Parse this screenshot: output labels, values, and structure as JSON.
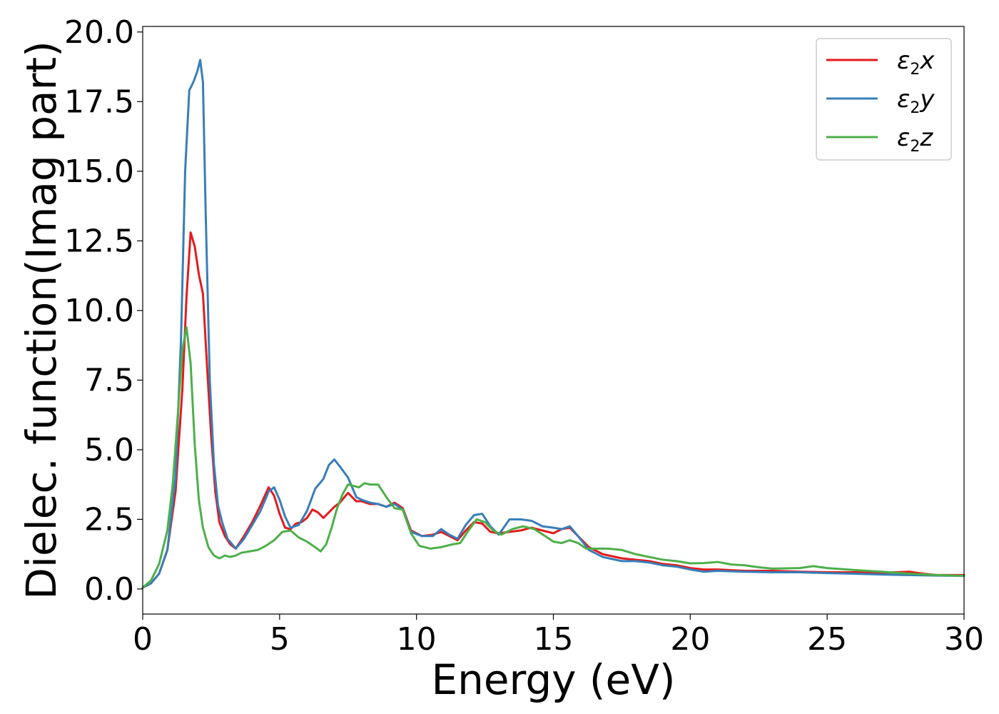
{
  "chart_data": {
    "type": "line",
    "xlabel": "Energy (eV)",
    "ylabel": "Dielec. function(Imag part)",
    "xlim": [
      0,
      30
    ],
    "ylim": [
      -0.9,
      20.2
    ],
    "xticks": [
      0,
      5,
      10,
      15,
      20,
      25,
      30
    ],
    "xtick_labels": [
      "0",
      "5",
      "10",
      "15",
      "20",
      "25",
      "30"
    ],
    "yticks": [
      0,
      2.5,
      5,
      7.5,
      10,
      12.5,
      15,
      17.5,
      20
    ],
    "ytick_labels": [
      "0.0",
      "2.5",
      "5.0",
      "7.5",
      "10.0",
      "12.5",
      "15.0",
      "17.5",
      "20.0"
    ],
    "grid": false,
    "legend_position": "top-right",
    "series": [
      {
        "name": "ε2x",
        "legend_main": "ε",
        "legend_sub": "2",
        "legend_var": "x",
        "color": "#e41a1c",
        "x": [
          0,
          0.3,
          0.6,
          0.9,
          1.2,
          1.45,
          1.6,
          1.75,
          1.9,
          2.05,
          2.2,
          2.35,
          2.5,
          2.65,
          2.8,
          3.0,
          3.2,
          3.4,
          3.7,
          4.0,
          4.3,
          4.6,
          4.8,
          5.0,
          5.2,
          5.4,
          5.6,
          5.8,
          6.0,
          6.2,
          6.4,
          6.6,
          6.8,
          7.0,
          7.2,
          7.5,
          7.8,
          8.0,
          8.3,
          8.6,
          8.9,
          9.2,
          9.5,
          9.8,
          10.2,
          10.6,
          10.9,
          11.2,
          11.5,
          11.8,
          12.1,
          12.4,
          12.7,
          13.0,
          13.4,
          13.8,
          14.2,
          14.6,
          15.0,
          15.3,
          15.6,
          15.9,
          16.3,
          16.8,
          17.5,
          18.0,
          18.5,
          19.0,
          19.5,
          20.0,
          20.5,
          21.0,
          22.0,
          23.0,
          24.0,
          25.0,
          26.0,
          27.0,
          27.5,
          28.0,
          28.5,
          29.0,
          30.0
        ],
        "y": [
          0.05,
          0.2,
          0.55,
          1.4,
          3.5,
          7.2,
          10.5,
          12.8,
          12.3,
          11.3,
          10.6,
          8.0,
          5.5,
          3.5,
          2.4,
          1.9,
          1.6,
          1.45,
          1.9,
          2.4,
          3.0,
          3.65,
          3.35,
          2.7,
          2.2,
          2.15,
          2.35,
          2.4,
          2.55,
          2.85,
          2.75,
          2.55,
          2.75,
          2.95,
          3.1,
          3.45,
          3.15,
          3.15,
          3.05,
          3.05,
          2.95,
          3.1,
          2.9,
          2.1,
          1.9,
          1.95,
          2.05,
          1.9,
          1.75,
          2.1,
          2.4,
          2.35,
          2.05,
          2.0,
          2.05,
          2.1,
          2.2,
          2.1,
          2.0,
          2.15,
          2.2,
          1.9,
          1.5,
          1.25,
          1.1,
          1.05,
          1.0,
          0.9,
          0.85,
          0.75,
          0.7,
          0.7,
          0.65,
          0.65,
          0.62,
          0.6,
          0.6,
          0.58,
          0.6,
          0.62,
          0.55,
          0.5,
          0.5
        ]
      },
      {
        "name": "ε2y",
        "legend_main": "ε",
        "legend_sub": "2",
        "legend_var": "y",
        "color": "#377eb8",
        "x": [
          0,
          0.3,
          0.6,
          0.9,
          1.2,
          1.4,
          1.55,
          1.7,
          1.85,
          2.0,
          2.1,
          2.2,
          2.3,
          2.45,
          2.6,
          2.75,
          2.9,
          3.1,
          3.4,
          3.7,
          4.0,
          4.3,
          4.6,
          4.8,
          5.0,
          5.2,
          5.4,
          5.7,
          6.0,
          6.3,
          6.6,
          6.8,
          7.0,
          7.2,
          7.5,
          7.8,
          8.0,
          8.3,
          8.6,
          8.9,
          9.2,
          9.5,
          9.8,
          10.2,
          10.6,
          10.9,
          11.2,
          11.5,
          11.8,
          12.1,
          12.4,
          12.7,
          13.0,
          13.4,
          13.8,
          14.2,
          14.6,
          15.0,
          15.3,
          15.6,
          15.9,
          16.3,
          16.8,
          17.5,
          18.0,
          18.5,
          19.0,
          19.5,
          20.0,
          20.5,
          21.0,
          22.0,
          23.0,
          24.0,
          25.0,
          26.0,
          27.0,
          28.0,
          29.0,
          30.0
        ],
        "y": [
          0.05,
          0.2,
          0.55,
          1.4,
          4.0,
          9.0,
          15.0,
          17.9,
          18.2,
          18.6,
          19.0,
          18.2,
          13.5,
          7.5,
          4.5,
          3.0,
          2.4,
          1.8,
          1.45,
          1.8,
          2.3,
          2.8,
          3.5,
          3.65,
          3.2,
          2.6,
          2.2,
          2.3,
          2.8,
          3.6,
          3.95,
          4.45,
          4.65,
          4.4,
          4.0,
          3.3,
          3.2,
          3.1,
          3.05,
          2.95,
          3.05,
          2.85,
          2.05,
          1.9,
          1.9,
          2.15,
          1.95,
          1.8,
          2.3,
          2.65,
          2.7,
          2.25,
          1.95,
          2.5,
          2.5,
          2.45,
          2.25,
          2.2,
          2.15,
          2.25,
          1.9,
          1.4,
          1.15,
          1.0,
          1.0,
          0.95,
          0.85,
          0.8,
          0.7,
          0.62,
          0.65,
          0.62,
          0.6,
          0.6,
          0.57,
          0.55,
          0.52,
          0.5,
          0.48,
          0.47
        ]
      },
      {
        "name": "ε2z",
        "legend_main": "ε",
        "legend_sub": "2",
        "legend_var": "z",
        "color": "#4daf4a",
        "x": [
          0,
          0.3,
          0.6,
          0.9,
          1.1,
          1.3,
          1.45,
          1.6,
          1.75,
          1.9,
          2.05,
          2.2,
          2.4,
          2.6,
          2.8,
          3.0,
          3.2,
          3.4,
          3.6,
          3.9,
          4.2,
          4.5,
          4.8,
          5.1,
          5.4,
          5.7,
          6.0,
          6.3,
          6.5,
          6.7,
          6.9,
          7.1,
          7.3,
          7.5,
          7.7,
          7.9,
          8.1,
          8.3,
          8.6,
          8.9,
          9.2,
          9.5,
          9.8,
          10.1,
          10.5,
          10.9,
          11.3,
          11.6,
          11.9,
          12.2,
          12.5,
          12.8,
          13.1,
          13.5,
          13.9,
          14.3,
          14.7,
          15.0,
          15.3,
          15.6,
          15.9,
          16.2,
          16.6,
          17.0,
          17.5,
          18.0,
          18.5,
          19.0,
          19.5,
          20.0,
          20.5,
          21.0,
          21.5,
          22.0,
          22.5,
          23.0,
          24.0,
          24.5,
          25.0,
          26.0,
          27.0,
          28.0,
          29.0,
          30.0
        ],
        "y": [
          0.05,
          0.3,
          0.9,
          2.1,
          3.8,
          6.5,
          8.6,
          9.4,
          8.1,
          5.2,
          3.2,
          2.2,
          1.5,
          1.2,
          1.1,
          1.2,
          1.15,
          1.2,
          1.3,
          1.35,
          1.4,
          1.55,
          1.75,
          2.05,
          2.1,
          1.85,
          1.7,
          1.5,
          1.35,
          1.6,
          2.2,
          2.9,
          3.4,
          3.75,
          3.7,
          3.65,
          3.8,
          3.75,
          3.75,
          3.3,
          2.9,
          2.85,
          2.0,
          1.55,
          1.45,
          1.5,
          1.6,
          1.65,
          2.1,
          2.5,
          2.4,
          2.1,
          1.95,
          2.15,
          2.25,
          2.15,
          1.9,
          1.7,
          1.65,
          1.75,
          1.65,
          1.45,
          1.45,
          1.45,
          1.4,
          1.25,
          1.15,
          1.05,
          1.0,
          0.92,
          0.93,
          0.97,
          0.88,
          0.85,
          0.78,
          0.73,
          0.75,
          0.82,
          0.75,
          0.68,
          0.62,
          0.55,
          0.5,
          0.47
        ]
      }
    ]
  }
}
